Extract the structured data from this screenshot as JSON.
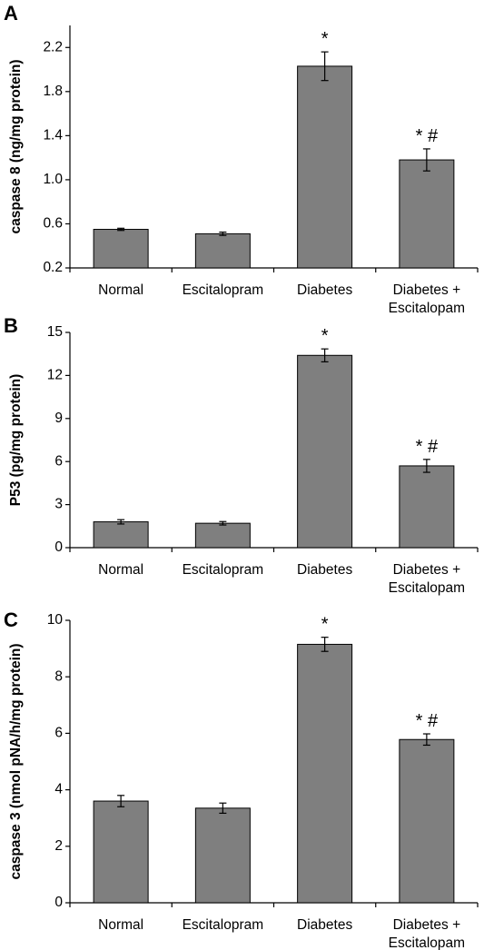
{
  "chart_data": [
    {
      "panel": "A",
      "type": "bar",
      "categories": [
        [
          "Normal"
        ],
        [
          "Escitalopram"
        ],
        [
          "Diabetes"
        ],
        [
          "Diabetes +",
          "Escitalopam"
        ]
      ],
      "values": [
        0.55,
        0.51,
        2.03,
        1.18
      ],
      "errors": [
        0.01,
        0.015,
        0.13,
        0.1
      ],
      "annotations": [
        "",
        "",
        "*",
        "* #"
      ],
      "ylabel": "caspase 8 (ng/mg protein)",
      "ylim": [
        0.2,
        2.4
      ],
      "yticks": [
        0.2,
        0.6,
        1.0,
        1.4,
        1.8,
        2.2
      ],
      "ytick_labels": [
        "0.2",
        "0.6",
        "1.0",
        "1.4",
        "1.8",
        "2.2"
      ],
      "bar_color": "#7f7f7f",
      "grid": false
    },
    {
      "panel": "B",
      "type": "bar",
      "categories": [
        [
          "Normal"
        ],
        [
          "Escitalopram"
        ],
        [
          "Diabetes"
        ],
        [
          "Diabetes +",
          "Escitalopam"
        ]
      ],
      "values": [
        1.8,
        1.7,
        13.4,
        5.7
      ],
      "errors": [
        0.15,
        0.12,
        0.45,
        0.45
      ],
      "annotations": [
        "",
        "",
        "*",
        "* #"
      ],
      "ylabel": "P53 (pg/mg protein)",
      "ylim": [
        0,
        15
      ],
      "yticks": [
        0,
        3,
        6,
        9,
        12,
        15
      ],
      "ytick_labels": [
        "0",
        "3",
        "6",
        "9",
        "12",
        "15"
      ],
      "bar_color": "#7f7f7f",
      "grid": false
    },
    {
      "panel": "C",
      "type": "bar",
      "categories": [
        [
          "Normal"
        ],
        [
          "Escitalopram"
        ],
        [
          "Diabetes"
        ],
        [
          "Diabetes +",
          "Escitalopam"
        ]
      ],
      "values": [
        3.6,
        3.35,
        9.15,
        5.78
      ],
      "errors": [
        0.2,
        0.18,
        0.25,
        0.2
      ],
      "annotations": [
        "",
        "",
        "*",
        "* #"
      ],
      "ylabel": "caspase 3 (nmol pNA/h/mg protein)",
      "ylim": [
        0,
        10
      ],
      "yticks": [
        0,
        2,
        4,
        6,
        8,
        10
      ],
      "ytick_labels": [
        "0",
        "2",
        "4",
        "6",
        "8",
        "10"
      ],
      "bar_color": "#7f7f7f",
      "grid": false
    }
  ]
}
